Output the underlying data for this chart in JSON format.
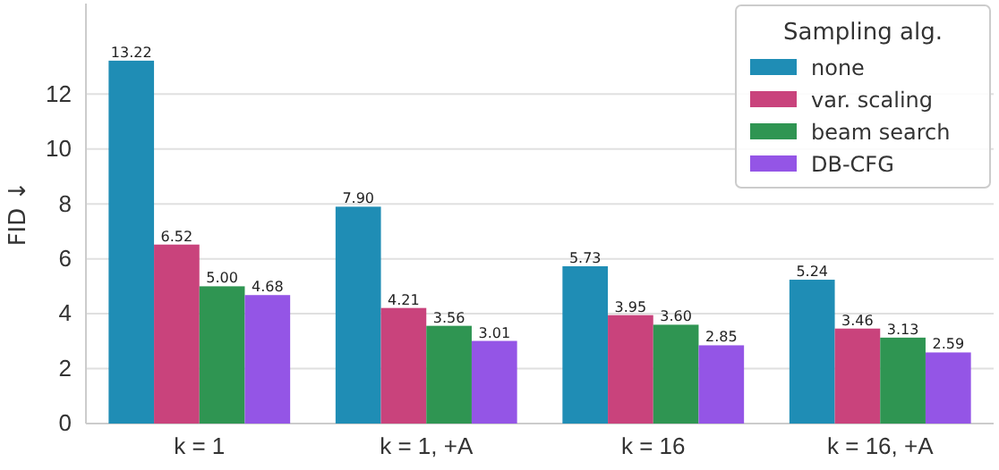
{
  "chart_data": {
    "type": "bar",
    "ylabel": "FID ↓",
    "legend_title": "Sampling alg.",
    "legend": "top right",
    "grid": "y",
    "categories": [
      "k = 1",
      "k = 1, +A",
      "k = 16",
      "k = 16, +A"
    ],
    "ylim": [
      0,
      15.3
    ],
    "yticks": [
      0,
      2,
      4,
      6,
      8,
      10,
      12
    ],
    "series": [
      {
        "name": "none",
        "color": "#1f8db5",
        "values": [
          13.22,
          7.9,
          5.73,
          5.24
        ],
        "value_labels": [
          "13.22",
          "7.90",
          "5.73",
          "5.24"
        ]
      },
      {
        "name": "var. scaling",
        "color": "#c9437c",
        "values": [
          6.52,
          4.21,
          3.95,
          3.46
        ],
        "value_labels": [
          "6.52",
          "4.21",
          "3.95",
          "3.46"
        ]
      },
      {
        "name": "beam search",
        "color": "#2f9552",
        "values": [
          5.0,
          3.56,
          3.6,
          3.13
        ],
        "value_labels": [
          "5.00",
          "3.56",
          "3.60",
          "3.13"
        ]
      },
      {
        "name": "DB-CFG",
        "color": "#9455e6",
        "values": [
          4.68,
          3.01,
          2.85,
          2.59
        ],
        "value_labels": [
          "4.68",
          "3.01",
          "2.85",
          "2.59"
        ]
      }
    ]
  }
}
